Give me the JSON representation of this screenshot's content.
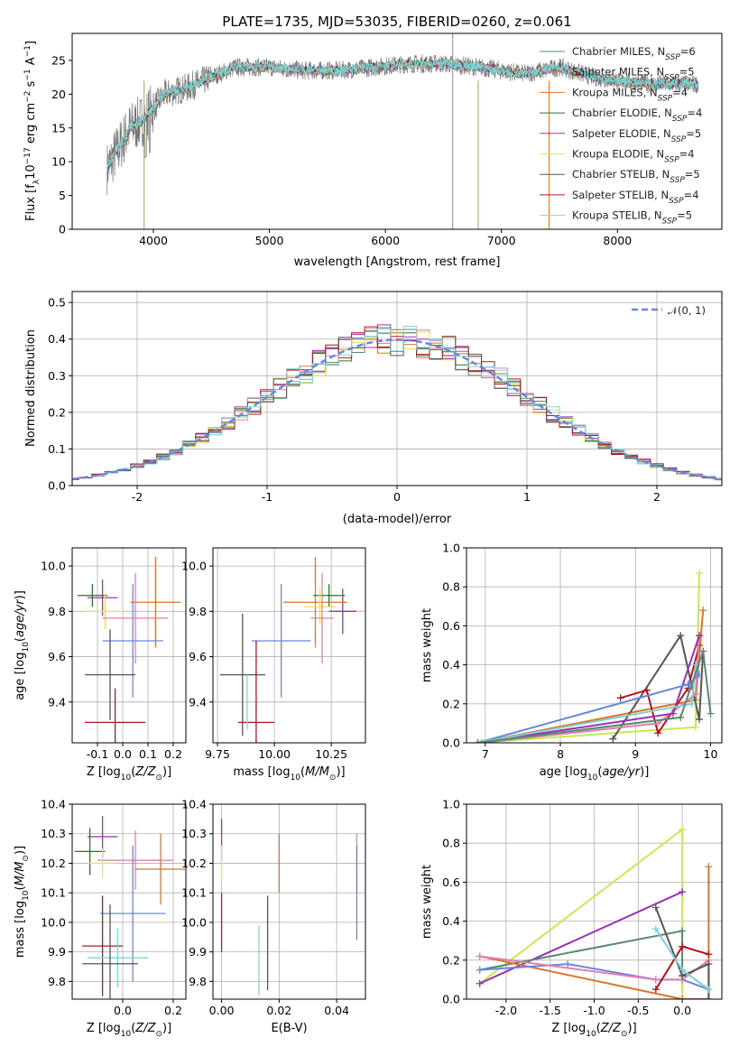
{
  "title": "PLATE=1735, MJD=53035, FIBERID=0260, z=0.061",
  "colors": {
    "chabrier_miles": "#5b8a6e",
    "salpeter_miles": "#e07fb0",
    "kroupa_miles": "#d97530",
    "chabrier_elodie": "#2e6e2e",
    "salpeter_elodie": "#9b30b8",
    "kroupa_elodie": "#e3e36a",
    "chabrier_stelib": "#555555",
    "salpeter_stelib": "#b3141d",
    "kroupa_stelib": "#7fd6d6",
    "cyan_line": "#79d2d4",
    "blue": "#6688dd",
    "lime": "#c8ea50",
    "grid": "#b0b0b0"
  },
  "legend": [
    {
      "name": "Chabrier MILES",
      "n": "6",
      "color": "#5b8a6e"
    },
    {
      "name": "Salpeter MILES",
      "n": "5",
      "color": "#e07fb0"
    },
    {
      "name": "Kroupa MILES",
      "n": "4",
      "color": "#d97530"
    },
    {
      "name": "Chabrier ELODIE",
      "n": "4",
      "color": "#2e6e2e"
    },
    {
      "name": "Salpeter ELODIE",
      "n": "5",
      "color": "#9b30b8"
    },
    {
      "name": "Kroupa ELODIE",
      "n": "4",
      "color": "#e3e36a"
    },
    {
      "name": "Chabrier STELIB",
      "n": "5",
      "color": "#555555"
    },
    {
      "name": "Salpeter STELIB",
      "n": "4",
      "color": "#b3141d"
    },
    {
      "name": "Kroupa STELIB",
      "n": "5",
      "color": "#7fd6d6"
    }
  ],
  "legend_prefix": "N",
  "legend_sub": "SSP",
  "dist_legend": "𝒩(0, 1)",
  "chart_data": [
    {
      "id": "spectrum",
      "type": "line",
      "xlabel": "wavelength [Angstrom, rest frame]",
      "ylabel": "Flux [f_λ 10^-17 erg cm^-2 s^-1 A^-1]",
      "xlim": [
        3300,
        8900
      ],
      "ylim": [
        0,
        29
      ],
      "xticks": [
        4000,
        5000,
        6000,
        7000,
        8000
      ],
      "yticks": [
        0,
        5,
        10,
        15,
        20,
        25
      ],
      "x_range": [
        3600,
        8700
      ],
      "continuum": [
        [
          3600,
          9
        ],
        [
          3700,
          12
        ],
        [
          3800,
          15
        ],
        [
          3900,
          16
        ],
        [
          4000,
          18
        ],
        [
          4100,
          20
        ],
        [
          4300,
          21
        ],
        [
          4500,
          22.5
        ],
        [
          4700,
          24
        ],
        [
          5000,
          24
        ],
        [
          5300,
          23.5
        ],
        [
          5600,
          23.5
        ],
        [
          5900,
          24
        ],
        [
          6200,
          24.5
        ],
        [
          6500,
          24.5
        ],
        [
          6800,
          24
        ],
        [
          7200,
          23
        ],
        [
          7500,
          24
        ],
        [
          7800,
          22.5
        ],
        [
          8000,
          22
        ],
        [
          8300,
          21.5
        ],
        [
          8700,
          21.5
        ]
      ]
    },
    {
      "id": "distribution",
      "type": "bar",
      "xlabel": "(data-model)/error",
      "ylabel": "Normed distribution",
      "xlim": [
        -2.5,
        2.5
      ],
      "ylim": [
        0,
        0.53
      ],
      "xticks": [
        -2,
        -1,
        0,
        1,
        2
      ],
      "yticks": [
        0.0,
        0.1,
        0.2,
        0.3,
        0.4,
        0.5
      ]
    },
    {
      "id": "age_vs_z",
      "type": "scatter",
      "xlabel": "Z [log10(Z/Z⊙)]",
      "ylabel": "age [log10(age/yr)]",
      "xlim": [
        -0.2,
        0.25
      ],
      "ylim": [
        9.22,
        10.08
      ],
      "xticks": [
        -0.1,
        0.0,
        0.1,
        0.2
      ],
      "yticks": [
        9.4,
        9.6,
        9.8,
        10.0
      ],
      "points": [
        {
          "x": -0.12,
          "y": 9.87,
          "xerr": 0.06,
          "yerr": 0.05,
          "color": "#2e6e2e"
        },
        {
          "x": -0.08,
          "y": 9.86,
          "xerr": 0.06,
          "yerr": 0.08,
          "color": "#9b30b8"
        },
        {
          "x": 0.13,
          "y": 9.84,
          "xerr": 0.1,
          "yerr": 0.2,
          "color": "#d97530"
        },
        {
          "x": -0.07,
          "y": 9.8,
          "xerr": 0.08,
          "yerr": 0.08,
          "color": "#e3e36a"
        },
        {
          "x": 0.05,
          "y": 9.77,
          "xerr": 0.13,
          "yerr": 0.2,
          "color": "#e07fb0"
        },
        {
          "x": 0.04,
          "y": 9.67,
          "xerr": 0.12,
          "yerr": 0.25,
          "color": "#6688dd"
        },
        {
          "x": -0.05,
          "y": 9.52,
          "xerr": 0.1,
          "yerr": 0.2,
          "color": "#555555"
        },
        {
          "x": -0.03,
          "y": 9.31,
          "xerr": 0.12,
          "yerr": 0.15,
          "color": "#b3141d"
        }
      ]
    },
    {
      "id": "age_vs_mass",
      "type": "scatter",
      "xlabel": "mass [log10(M/M⊙)]",
      "ylabel": "",
      "xlim": [
        9.73,
        10.4
      ],
      "ylim": [
        9.22,
        10.08
      ],
      "xticks": [
        9.75,
        10.0,
        10.25
      ],
      "yticks": [
        9.4,
        9.6,
        9.8,
        10.0
      ],
      "points": [
        {
          "x": 10.24,
          "y": 9.87,
          "xerr": 0.07,
          "yerr": 0.05,
          "color": "#2e6e2e"
        },
        {
          "x": 10.3,
          "y": 9.8,
          "xerr": 0.06,
          "yerr": 0.1,
          "color": "#9b30b8"
        },
        {
          "x": 10.18,
          "y": 9.84,
          "xerr": 0.14,
          "yerr": 0.2,
          "color": "#d97530"
        },
        {
          "x": 10.2,
          "y": 9.82,
          "xerr": 0.07,
          "yerr": 0.08,
          "color": "#e3e36a"
        },
        {
          "x": 10.21,
          "y": 9.77,
          "xerr": 0.05,
          "yerr": 0.2,
          "color": "#e07fb0"
        },
        {
          "x": 10.03,
          "y": 9.67,
          "xerr": 0.13,
          "yerr": 0.25,
          "color": "#6688dd"
        },
        {
          "x": 9.86,
          "y": 9.52,
          "xerr": 0.1,
          "yerr": 0.27,
          "color": "#555555"
        },
        {
          "x": 9.92,
          "y": 9.31,
          "xerr": 0.08,
          "yerr": 0.36,
          "color": "#b3141d"
        },
        {
          "x": 9.88,
          "y": 9.4,
          "xerr": 0.0,
          "yerr": 0.12,
          "color": "#7fd6d6"
        }
      ]
    },
    {
      "id": "weight_vs_age",
      "type": "line",
      "xlabel": "age [log10(age/yr)]",
      "ylabel": "mass weight",
      "xlim": [
        6.75,
        10.15
      ],
      "ylim": [
        0,
        1
      ],
      "xticks": [
        7,
        8,
        9,
        10
      ],
      "yticks": [
        0.0,
        0.2,
        0.4,
        0.6,
        0.8,
        1.0
      ],
      "series": [
        {
          "color": "#c8ea50",
          "x": [
            6.9,
            9.8,
            9.85
          ],
          "y": [
            0.0,
            0.08,
            0.87
          ]
        },
        {
          "color": "#d97530",
          "x": [
            6.9,
            9.8,
            9.9
          ],
          "y": [
            0.0,
            0.22,
            0.68
          ]
        },
        {
          "color": "#555555",
          "x": [
            8.7,
            9.6,
            9.85,
            9.9
          ],
          "y": [
            0.02,
            0.55,
            0.12,
            0.47
          ]
        },
        {
          "color": "#b3141d",
          "x": [
            8.8,
            9.15,
            9.3,
            9.7,
            9.85
          ],
          "y": [
            0.23,
            0.27,
            0.05,
            0.28,
            0.5
          ]
        },
        {
          "color": "#e07fb0",
          "x": [
            6.95,
            9.3,
            9.8,
            9.85
          ],
          "y": [
            0.0,
            0.1,
            0.25,
            0.55
          ]
        },
        {
          "color": "#9b30b8",
          "x": [
            6.9,
            9.5,
            9.85
          ],
          "y": [
            0.0,
            0.15,
            0.55
          ]
        },
        {
          "color": "#6688dd",
          "x": [
            6.9,
            9.7,
            9.85
          ],
          "y": [
            0.0,
            0.3,
            0.35
          ]
        },
        {
          "color": "#79d2d4",
          "x": [
            6.9,
            9.75,
            9.8
          ],
          "y": [
            0.0,
            0.2,
            0.4
          ]
        },
        {
          "color": "#5b8a6e",
          "x": [
            6.9,
            9.6,
            9.9,
            10.0
          ],
          "y": [
            0.0,
            0.13,
            0.47,
            0.15
          ]
        }
      ]
    },
    {
      "id": "mass_vs_z",
      "type": "scatter",
      "xlabel": "Z [log10(Z/Z⊙)]",
      "ylabel": "mass [log10(M/M⊙)]",
      "xlim": [
        -0.2,
        0.25
      ],
      "ylim": [
        9.74,
        10.4
      ],
      "xticks": [
        0.0,
        0.2
      ],
      "yticks": [
        9.8,
        9.9,
        10.0,
        10.1,
        10.2,
        10.3,
        10.4
      ],
      "points": [
        {
          "x": -0.08,
          "y": 10.29,
          "xerr": 0.06,
          "yerr": 0.07,
          "color": "#9b30b8"
        },
        {
          "x": -0.13,
          "y": 10.24,
          "xerr": 0.06,
          "yerr": 0.08,
          "color": "#2e6e2e"
        },
        {
          "x": 0.05,
          "y": 10.21,
          "xerr": 0.15,
          "yerr": 0.1,
          "color": "#e07fb0"
        },
        {
          "x": -0.08,
          "y": 10.2,
          "xerr": 0.06,
          "yerr": 0.05,
          "color": "#e3e36a"
        },
        {
          "x": 0.15,
          "y": 10.18,
          "xerr": 0.1,
          "yerr": 0.12,
          "color": "#d97530"
        },
        {
          "x": 0.04,
          "y": 10.03,
          "xerr": 0.13,
          "yerr": 0.23,
          "color": "#6688dd"
        },
        {
          "x": -0.08,
          "y": 9.92,
          "xerr": 0.08,
          "yerr": 0.17,
          "color": "#b3141d"
        },
        {
          "x": -0.02,
          "y": 9.88,
          "xerr": 0.12,
          "yerr": 0.1,
          "color": "#7fd6d6"
        },
        {
          "x": -0.05,
          "y": 9.86,
          "xerr": 0.11,
          "yerr": 0.2,
          "color": "#555555"
        }
      ]
    },
    {
      "id": "mass_vs_ebv",
      "type": "scatter",
      "xlabel": "E(B-V)",
      "ylabel": "",
      "xlim": [
        -0.003,
        0.05
      ],
      "ylim": [
        9.74,
        10.4
      ],
      "xticks": [
        0.0,
        0.02,
        0.04
      ],
      "yticks": [
        9.8,
        9.9,
        10.0,
        10.1,
        10.2,
        10.3,
        10.4
      ],
      "points": [
        {
          "x": 0.0,
          "y": 10.28,
          "xerr": 0,
          "yerr": 0.07,
          "color": "#9b30b8"
        },
        {
          "x": 0.0,
          "y": 10.2,
          "xerr": 0,
          "yerr": 0.06,
          "color": "#e3e36a"
        },
        {
          "x": 0.0,
          "y": 10.0,
          "xerr": 0,
          "yerr": 0.1,
          "color": "#b3141d"
        },
        {
          "x": 0.02,
          "y": 10.2,
          "xerr": 0,
          "yerr": 0.1,
          "color": "#d97530"
        },
        {
          "x": 0.016,
          "y": 9.93,
          "xerr": 0,
          "yerr": 0.16,
          "color": "#555555"
        },
        {
          "x": 0.013,
          "y": 9.87,
          "xerr": 0,
          "yerr": 0.12,
          "color": "#7fd6d6"
        },
        {
          "x": 0.047,
          "y": 10.2,
          "xerr": 0,
          "yerr": 0.1,
          "color": "#e07fb0"
        },
        {
          "x": 0.047,
          "y": 10.1,
          "xerr": 0,
          "yerr": 0.16,
          "color": "#6688dd"
        }
      ]
    },
    {
      "id": "weight_vs_z",
      "type": "line",
      "xlabel": "Z [log10(Z/Z⊙)]",
      "ylabel": "mass weight",
      "xlim": [
        -2.45,
        0.45
      ],
      "ylim": [
        0,
        1
      ],
      "xticks": [
        -2.0,
        -1.5,
        -1.0,
        -0.5,
        0.0
      ],
      "yticks": [
        0.0,
        0.2,
        0.4,
        0.6,
        0.8,
        1.0
      ],
      "series": [
        {
          "color": "#c8ea50",
          "x": [
            -2.3,
            0.0,
            0.0
          ],
          "y": [
            0.08,
            0.87,
            0.0
          ]
        },
        {
          "color": "#9b30b8",
          "x": [
            -2.3,
            0.0
          ],
          "y": [
            0.08,
            0.55
          ]
        },
        {
          "color": "#5b8a6e",
          "x": [
            -2.3,
            0.0,
            0.0
          ],
          "y": [
            0.15,
            0.35,
            0.12
          ]
        },
        {
          "color": "#d97530",
          "x": [
            -2.3,
            0.0,
            0.3,
            0.3
          ],
          "y": [
            0.22,
            0.0,
            0.0,
            0.68
          ]
        },
        {
          "color": "#6688dd",
          "x": [
            -2.3,
            -1.3,
            -0.3,
            0.0,
            0.3
          ],
          "y": [
            0.15,
            0.18,
            0.1,
            0.1,
            0.05
          ]
        },
        {
          "color": "#e07fb0",
          "x": [
            -2.3,
            -0.3,
            0.0,
            0.3
          ],
          "y": [
            0.22,
            0.1,
            0.1,
            0.2
          ]
        },
        {
          "color": "#b3141d",
          "x": [
            -0.3,
            0.0,
            0.3
          ],
          "y": [
            0.05,
            0.27,
            0.23
          ]
        },
        {
          "color": "#555555",
          "x": [
            -0.3,
            0.0,
            0.3,
            0.3
          ],
          "y": [
            0.47,
            0.12,
            0.18,
            0.0
          ]
        },
        {
          "color": "#79d2d4",
          "x": [
            -0.3,
            0.0,
            0.3
          ],
          "y": [
            0.36,
            0.15,
            0.05
          ]
        }
      ]
    }
  ]
}
